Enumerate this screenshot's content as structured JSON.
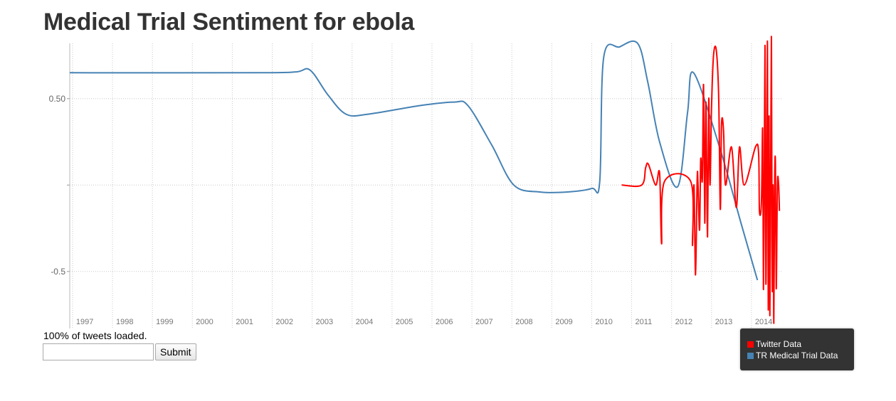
{
  "title": "Medical Trial Sentiment for ebola",
  "status_text": "100% of tweets loaded.",
  "search": {
    "value": "",
    "placeholder": ""
  },
  "submit_label": "Submit",
  "legend": [
    {
      "name": "Twitter Data",
      "color": "#ff0000"
    },
    {
      "name": "TR Medical Trial Data",
      "color": "#4682b4"
    }
  ],
  "chart_data": {
    "type": "line",
    "title": "Medical Trial Sentiment for ebola",
    "xlabel": "",
    "ylabel": "",
    "xlim": [
      1996.73,
      2014.55
    ],
    "ylim": [
      -0.83,
      0.82
    ],
    "y_ticks": [
      0.5,
      0.0,
      -0.5
    ],
    "y_tick_labels": [
      "0.50",
      "",
      "-0.5"
    ],
    "x_ticks": [
      1997,
      1998,
      1999,
      2000,
      2001,
      2002,
      2003,
      2004,
      2005,
      2006,
      2007,
      2008,
      2009,
      2010,
      2011,
      2012,
      2013,
      2014
    ],
    "grid": true,
    "legend_position": "bottom-right",
    "series": [
      {
        "name": "TR Medical Trial Data",
        "color": "#4682b4",
        "x": [
          1996.73,
          2001.5,
          2002.4,
          2002.75,
          2003.2,
          2003.65,
          2004.2,
          2005.5,
          2006.35,
          2006.7,
          2007.3,
          2007.85,
          2008.5,
          2009.2,
          2009.8,
          2010.0,
          2010.1,
          2010.5,
          2010.95,
          2011.2,
          2011.5,
          2011.95,
          2012.2,
          2012.35,
          2013.0,
          2013.55,
          2013.95
        ],
        "y": [
          0.65,
          0.65,
          0.655,
          0.665,
          0.52,
          0.41,
          0.41,
          0.46,
          0.48,
          0.46,
          0.23,
          0.0,
          -0.04,
          -0.04,
          -0.02,
          0.02,
          0.74,
          0.8,
          0.82,
          0.6,
          0.25,
          -0.01,
          0.42,
          0.65,
          0.22,
          -0.23,
          -0.55
        ]
      },
      {
        "name": "Twitter Data",
        "color": "#ff0000",
        "x": [
          2010.55,
          2011.05,
          2011.15,
          2011.22,
          2011.4,
          2011.5,
          2011.55,
          2011.62,
          2012.28,
          2012.32,
          2012.36,
          2012.4,
          2012.44,
          2012.46,
          2012.5,
          2012.53,
          2012.57,
          2012.6,
          2012.63,
          2012.66,
          2012.7,
          2012.73,
          2012.76,
          2012.8,
          2012.85,
          2012.92,
          2012.98,
          2013.02,
          2013.05,
          2013.1,
          2013.15,
          2013.3,
          2013.42,
          2013.5,
          2013.62,
          2013.9,
          2013.98,
          2014.0,
          2014.05,
          2014.08,
          2014.1,
          2014.12,
          2014.14,
          2014.16,
          2014.18,
          2014.2,
          2014.22,
          2014.24,
          2014.26,
          2014.28,
          2014.3,
          2014.32,
          2014.34,
          2014.36,
          2014.38,
          2014.4,
          2014.42,
          2014.45,
          2014.48,
          2014.5
        ],
        "y": [
          0.0,
          0.0,
          0.1,
          0.12,
          0.0,
          0.07,
          -0.34,
          0.02,
          0.02,
          -0.35,
          0.0,
          -0.52,
          0.03,
          0.02,
          -0.26,
          0.15,
          0.03,
          0.58,
          -0.22,
          0.48,
          -0.3,
          0.5,
          0.0,
          0.45,
          0.75,
          0.78,
          0.5,
          -0.14,
          0.35,
          0.32,
          0.0,
          0.22,
          -0.13,
          0.22,
          0.0,
          0.22,
          0.18,
          -0.15,
          -0.1,
          0.32,
          -0.6,
          0.0,
          0.8,
          -0.55,
          0.0,
          0.82,
          -0.72,
          0.4,
          -0.75,
          0.0,
          0.85,
          -0.6,
          0.0,
          -0.8,
          0.0,
          0.12,
          -0.6,
          0.0,
          0.0,
          -0.15
        ]
      }
    ]
  }
}
